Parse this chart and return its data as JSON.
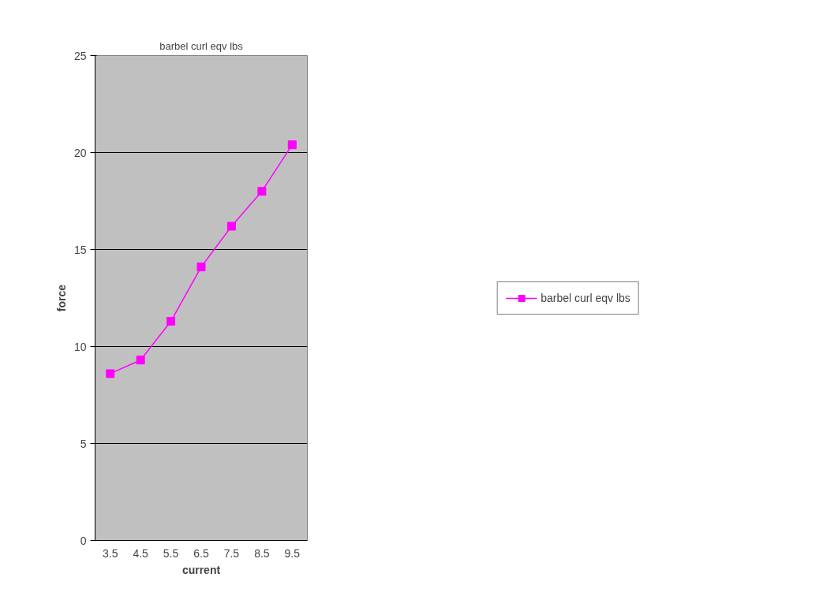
{
  "chart_data": {
    "type": "line",
    "title": "barbel curl eqv lbs",
    "xlabel": "current",
    "ylabel": "force",
    "categories": [
      "3.5",
      "4.5",
      "5.5",
      "6.5",
      "7.5",
      "8.5",
      "9.5"
    ],
    "series": [
      {
        "name": "barbel curl eqv lbs",
        "color": "#ff00ff",
        "values": [
          8.6,
          9.3,
          11.3,
          14.1,
          16.2,
          18.0,
          20.4
        ]
      }
    ],
    "ylim": [
      0,
      25
    ],
    "yticks": [
      0,
      5,
      10,
      15,
      20,
      25
    ],
    "grid": "y",
    "legend": "right",
    "marker": "square",
    "line_style": "solid"
  }
}
